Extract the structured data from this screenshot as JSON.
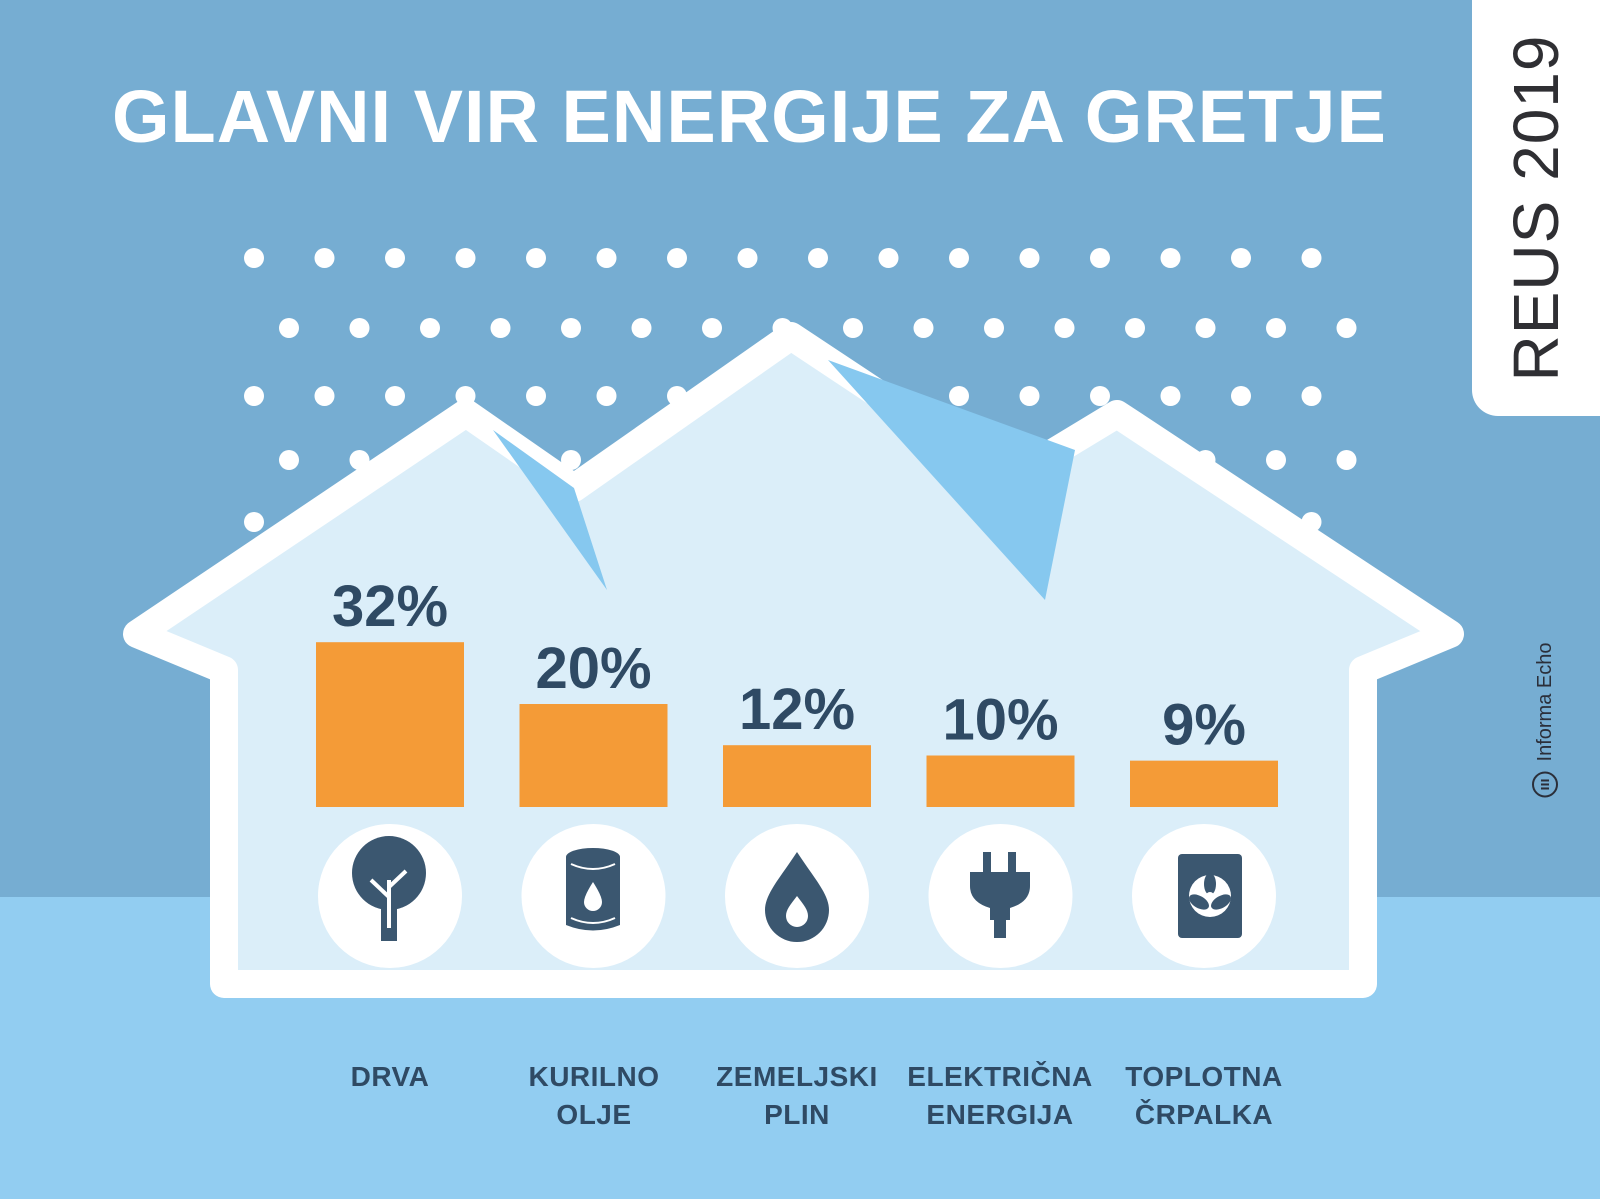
{
  "title": "GLAVNI VIR ENERGIJE ZA GRETJE",
  "tag": "REUS 2019",
  "credit": "Informa Echo",
  "colors": {
    "background_top": "#76add2",
    "background_bottom": "#92cdf1",
    "house_fill": "#dbeef9",
    "house_outline": "#ffffff",
    "bar": "#f49b37",
    "icon": "#3b5770",
    "label_text": "#2f4a64",
    "roof_accent": "#86c8ef"
  },
  "chart_data": {
    "type": "bar",
    "title": "GLAVNI VIR ENERGIJE ZA GRETJE",
    "categories": [
      {
        "line1": "DRVA",
        "line2": "",
        "icon": "tree-icon"
      },
      {
        "line1": "KURILNO",
        "line2": "OLJE",
        "icon": "oil-barrel-icon"
      },
      {
        "line1": "ZEMELJSKI",
        "line2": "PLIN",
        "icon": "gas-flame-icon"
      },
      {
        "line1": "ELEKTRIČNA",
        "line2": "ENERGIJA",
        "icon": "power-plug-icon"
      },
      {
        "line1": "TOPLOTNA",
        "line2": "ČRPALKA",
        "icon": "heat-pump-icon"
      }
    ],
    "values": [
      32,
      20,
      12,
      10,
      9
    ],
    "value_labels": [
      "32%",
      "20%",
      "12%",
      "10%",
      "9%"
    ],
    "unit": "%",
    "grid": false,
    "legend": "none"
  }
}
